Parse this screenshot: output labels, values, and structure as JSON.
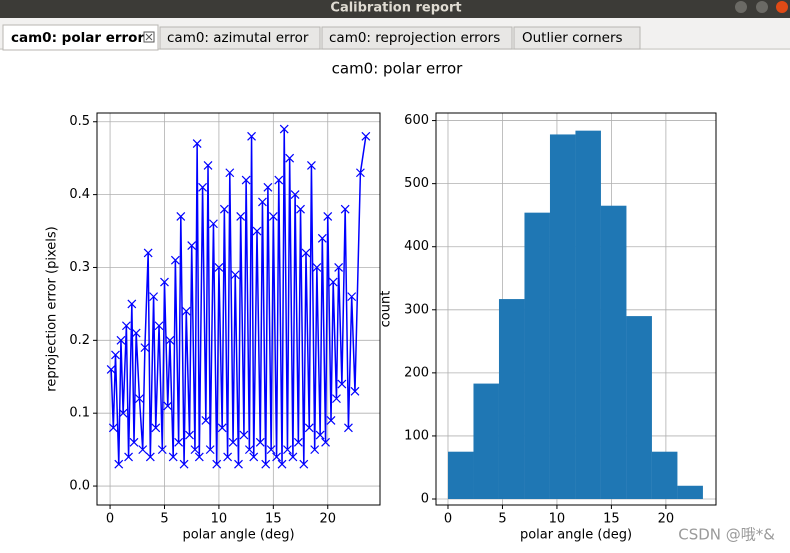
{
  "window": {
    "title": "Calibration report"
  },
  "tabs": [
    "cam0: polar error",
    "cam0: azimutal error",
    "cam0: reprojection errors",
    "Outlier corners"
  ],
  "figure_title": "cam0: polar error",
  "watermark": "CSDN @哦*&",
  "chart_data": [
    {
      "type": "line",
      "color": "#0000ff",
      "marker": "x",
      "grid": true,
      "x_label": "polar angle (deg)",
      "y_label": "reprojection error (pixels)",
      "x": [
        0.1,
        0.3,
        0.5,
        0.8,
        1.0,
        1.2,
        1.5,
        1.7,
        2.0,
        2.2,
        2.4,
        2.7,
        3.0,
        3.2,
        3.5,
        3.7,
        4.0,
        4.2,
        4.5,
        4.8,
        5.0,
        5.3,
        5.5,
        5.8,
        6.0,
        6.3,
        6.5,
        6.8,
        7.0,
        7.3,
        7.5,
        7.8,
        8.0,
        8.2,
        8.5,
        8.8,
        9.0,
        9.2,
        9.5,
        9.8,
        10.0,
        10.3,
        10.5,
        10.8,
        11.0,
        11.3,
        11.5,
        11.8,
        12.0,
        12.3,
        12.5,
        12.8,
        13.0,
        13.2,
        13.5,
        13.8,
        14.0,
        14.3,
        14.5,
        14.8,
        15.0,
        15.3,
        15.5,
        15.8,
        16.0,
        16.3,
        16.5,
        16.8,
        17.0,
        17.3,
        17.5,
        17.8,
        18.0,
        18.3,
        18.5,
        18.8,
        19.0,
        19.3,
        19.5,
        19.8,
        20.0,
        20.3,
        20.5,
        20.8,
        21.0,
        21.3,
        21.6,
        21.9,
        22.2,
        22.5,
        23.0,
        23.5
      ],
      "values": [
        0.16,
        0.08,
        0.18,
        0.03,
        0.2,
        0.1,
        0.22,
        0.04,
        0.25,
        0.06,
        0.21,
        0.12,
        0.05,
        0.19,
        0.32,
        0.04,
        0.26,
        0.08,
        0.22,
        0.05,
        0.28,
        0.11,
        0.2,
        0.04,
        0.31,
        0.06,
        0.37,
        0.03,
        0.24,
        0.07,
        0.33,
        0.05,
        0.47,
        0.04,
        0.41,
        0.09,
        0.44,
        0.05,
        0.36,
        0.03,
        0.3,
        0.08,
        0.38,
        0.04,
        0.43,
        0.06,
        0.29,
        0.03,
        0.37,
        0.07,
        0.42,
        0.05,
        0.48,
        0.04,
        0.35,
        0.06,
        0.39,
        0.03,
        0.41,
        0.05,
        0.37,
        0.04,
        0.42,
        0.03,
        0.49,
        0.05,
        0.45,
        0.04,
        0.4,
        0.06,
        0.38,
        0.03,
        0.32,
        0.08,
        0.44,
        0.05,
        0.3,
        0.07,
        0.34,
        0.06,
        0.37,
        0.09,
        0.28,
        0.12,
        0.3,
        0.14,
        0.38,
        0.08,
        0.26,
        0.13,
        0.43,
        0.48
      ],
      "xlim": [
        -1.2,
        24.8
      ],
      "ylim": [
        -0.026,
        0.512
      ],
      "xticks": [
        0,
        5,
        10,
        15,
        20
      ],
      "yticks": [
        {
          "value": 0,
          "label": "0.0"
        },
        0.1,
        0.2,
        0.3,
        0.4,
        0.5
      ]
    },
    {
      "type": "histogram",
      "color": "#1f77b4",
      "grid": true,
      "x_label": "polar angle (deg)",
      "y_label": "count",
      "bins": [
        0,
        2.34,
        4.68,
        7.02,
        9.36,
        11.7,
        14.04,
        16.38,
        18.72,
        21.06,
        23.4
      ],
      "values": [
        75,
        183,
        317,
        454,
        578,
        584,
        465,
        290,
        75,
        21
      ],
      "xlim": [
        -1.1,
        24.6
      ],
      "ylim": [
        -9.5,
        612
      ],
      "xticks": [
        0,
        5,
        10,
        15,
        20
      ],
      "yticks": [
        0,
        100,
        200,
        300,
        400,
        500,
        600
      ]
    }
  ]
}
